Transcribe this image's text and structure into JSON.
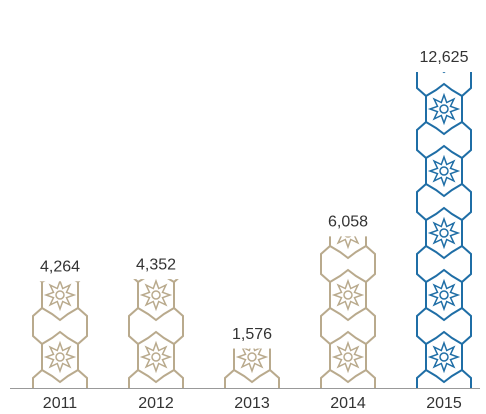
{
  "chart_data": {
    "type": "bar",
    "categories": [
      "2011",
      "2012",
      "2013",
      "2014",
      "2015"
    ],
    "values": [
      4264,
      4352,
      1576,
      6058,
      12625
    ],
    "value_labels": [
      "4,264",
      "4,352",
      "1,576",
      "6,058",
      "12,625"
    ],
    "colors": [
      "#b9aa8d",
      "#b9aa8d",
      "#b9aa8d",
      "#b9aa8d",
      "#1f6ea6"
    ]
  }
}
